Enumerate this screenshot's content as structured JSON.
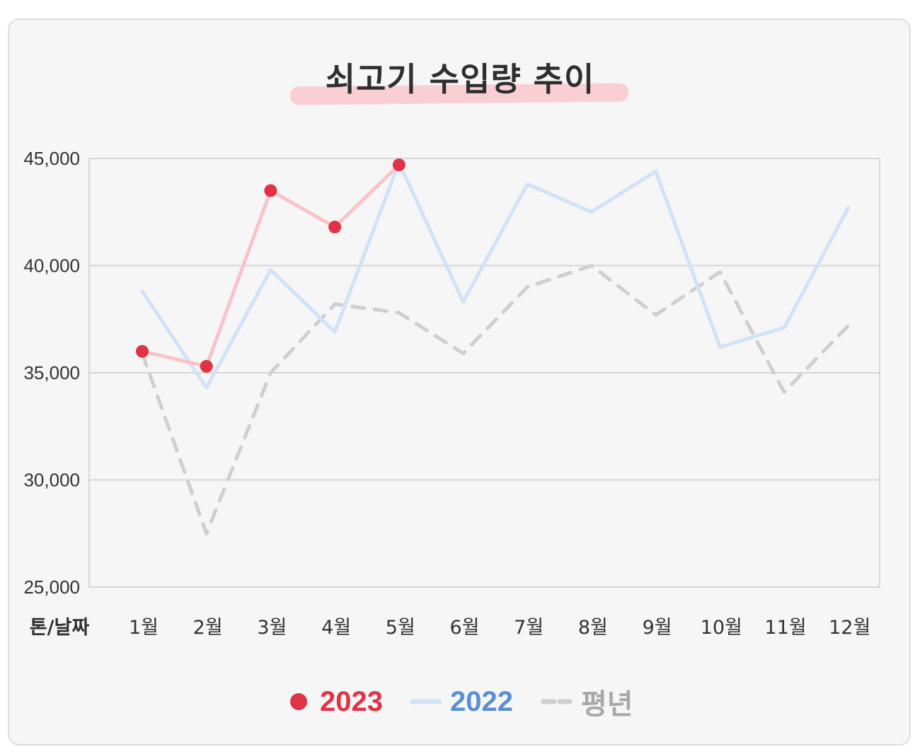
{
  "chart_data": {
    "type": "line",
    "title": "쇠고기 수입량 추이",
    "xlabel": "톤/날짜",
    "categories": [
      "1월",
      "2월",
      "3월",
      "4월",
      "5월",
      "6월",
      "7월",
      "8월",
      "9월",
      "10월",
      "11월",
      "12월"
    ],
    "ylim": [
      25000,
      45000
    ],
    "yticks": [
      25000,
      30000,
      35000,
      40000,
      45000
    ],
    "ytick_labels": [
      "25,000",
      "30,000",
      "35,000",
      "40,000",
      "45,000"
    ],
    "grid": true,
    "legend_position": "bottom",
    "series": [
      {
        "name": "2023",
        "style": "solid-markers",
        "color": "#e03345",
        "line_color": "#f9c3c9",
        "values": [
          36000,
          35300,
          43500,
          41800,
          44700,
          null,
          null,
          null,
          null,
          null,
          null,
          null
        ]
      },
      {
        "name": "2022",
        "style": "solid",
        "color": "#5b8fd4",
        "line_color": "#d2e2f8",
        "values": [
          38800,
          34300,
          39800,
          36900,
          44800,
          38300,
          43800,
          42500,
          44400,
          36200,
          37100,
          42700
        ]
      },
      {
        "name": "평년",
        "style": "dashed",
        "color": "#b0b0b0",
        "line_color": "#cfcfcf",
        "values": [
          35900,
          27500,
          35000,
          38200,
          37800,
          35900,
          39000,
          40000,
          37700,
          39700,
          34100,
          37200
        ]
      }
    ]
  }
}
